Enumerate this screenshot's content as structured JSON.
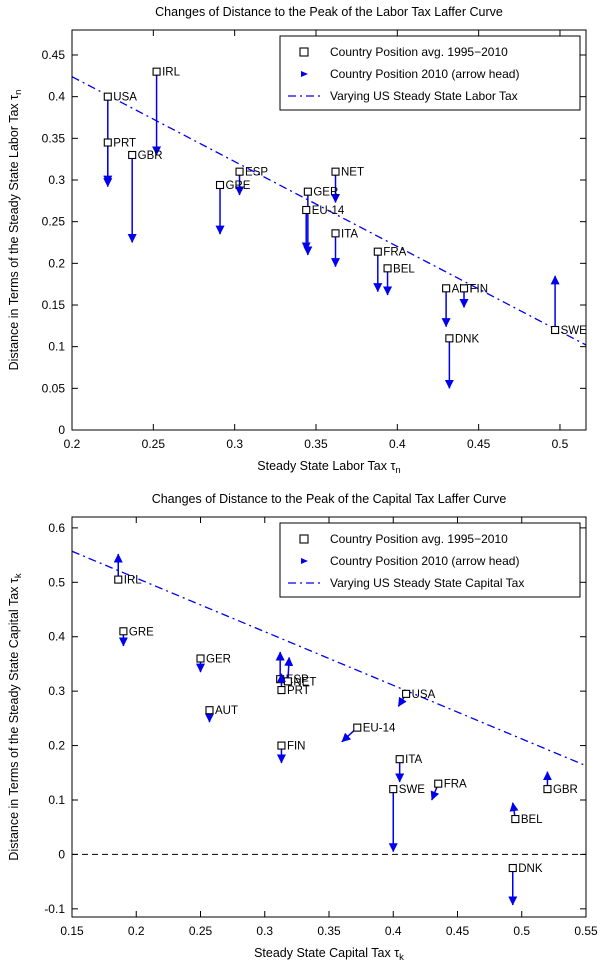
{
  "figure": {
    "bg": "#ffffff",
    "accent_blue": "#0000ee",
    "axis_color": "#000000"
  },
  "chart_data": [
    {
      "type": "scatter",
      "title": "Changes of Distance to the Peak of the Labor Tax Laffer Curve",
      "xlabel": {
        "text": "Steady State Labor Tax τ",
        "sub": "n"
      },
      "ylabel": {
        "text": "Distance in Terms of the Steady State Labor Tax τ",
        "sub": "n"
      },
      "xlim": [
        0.2,
        0.516
      ],
      "ylim": [
        0,
        0.48
      ],
      "xticks": [
        0.2,
        0.25,
        0.3,
        0.35,
        0.4,
        0.45,
        0.5
      ],
      "yticks": [
        0,
        0.05,
        0.1,
        0.15,
        0.2,
        0.25,
        0.3,
        0.35,
        0.4,
        0.45
      ],
      "grid": false,
      "legend_position": "top-right",
      "legend": [
        {
          "marker": "square",
          "label": "Country Position avg. 1995−2010"
        },
        {
          "marker": "arrowhead",
          "label": "Country Position 2010 (arrow head)"
        },
        {
          "marker": "dashdot-line",
          "label": "Varying US Steady State Labor Tax"
        }
      ],
      "reference_line": {
        "x": [
          0.2,
          0.516
        ],
        "y": [
          0.424,
          0.102
        ]
      },
      "zero_line": false,
      "points": [
        {
          "label": "USA",
          "x": 0.222,
          "y": 0.4,
          "x2": 0.222,
          "y2": 0.295
        },
        {
          "label": "IRL",
          "x": 0.252,
          "y": 0.43,
          "x2": 0.252,
          "y2": 0.33
        },
        {
          "label": "PRT",
          "x": 0.222,
          "y": 0.345,
          "x2": 0.222,
          "y2": 0.292
        },
        {
          "label": "GBR",
          "x": 0.237,
          "y": 0.33,
          "x2": 0.237,
          "y2": 0.225
        },
        {
          "label": "ESP",
          "x": 0.303,
          "y": 0.31,
          "x2": 0.303,
          "y2": 0.282
        },
        {
          "label": "GRE",
          "x": 0.291,
          "y": 0.294,
          "x2": 0.291,
          "y2": 0.235
        },
        {
          "label": "NET",
          "x": 0.362,
          "y": 0.31,
          "x2": 0.362,
          "y2": 0.273
        },
        {
          "label": "GER",
          "x": 0.345,
          "y": 0.286,
          "x2": 0.345,
          "y2": 0.21
        },
        {
          "label": "EU-14",
          "x": 0.344,
          "y": 0.264,
          "x2": 0.344,
          "y2": 0.215
        },
        {
          "label": "ITA",
          "x": 0.362,
          "y": 0.236,
          "x2": 0.362,
          "y2": 0.196
        },
        {
          "label": "FRA",
          "x": 0.388,
          "y": 0.214,
          "x2": 0.388,
          "y2": 0.166
        },
        {
          "label": "BEL",
          "x": 0.394,
          "y": 0.194,
          "x2": 0.394,
          "y2": 0.162
        },
        {
          "label": "AUT",
          "x": 0.43,
          "y": 0.17,
          "x2": 0.43,
          "y2": 0.124
        },
        {
          "label": "FIN",
          "x": 0.441,
          "y": 0.17,
          "x2": 0.441,
          "y2": 0.147
        },
        {
          "label": "DNK",
          "x": 0.432,
          "y": 0.11,
          "x2": 0.432,
          "y2": 0.05
        },
        {
          "label": "SWE",
          "x": 0.497,
          "y": 0.12,
          "x2": 0.497,
          "y2": 0.185
        }
      ]
    },
    {
      "type": "scatter",
      "title": "Changes of Distance to the Peak of the Capital Tax Laffer Curve",
      "xlabel": {
        "text": "Steady State Capital Tax τ",
        "sub": "k"
      },
      "ylabel": {
        "text": "Distance in Terms of the Steady State Capital Tax τ",
        "sub": "k"
      },
      "xlim": [
        0.15,
        0.55
      ],
      "ylim": [
        -0.115,
        0.62
      ],
      "xticks": [
        0.15,
        0.2,
        0.25,
        0.3,
        0.35,
        0.4,
        0.45,
        0.5,
        0.55
      ],
      "yticks": [
        -0.1,
        0,
        0.1,
        0.2,
        0.3,
        0.4,
        0.5,
        0.6
      ],
      "grid": false,
      "legend_position": "top-right",
      "legend": [
        {
          "marker": "square",
          "label": "Country Position avg. 1995−2010"
        },
        {
          "marker": "arrowhead",
          "label": "Country Position 2010 (arrow head)"
        },
        {
          "marker": "dashdot-line",
          "label": "Varying US Steady State Capital Tax"
        }
      ],
      "reference_line": {
        "x": [
          0.15,
          0.55
        ],
        "y": [
          0.557,
          0.163
        ]
      },
      "zero_line": true,
      "points": [
        {
          "label": "IRL",
          "x": 0.186,
          "y": 0.505,
          "x2": 0.186,
          "y2": 0.552
        },
        {
          "label": "GRE",
          "x": 0.19,
          "y": 0.41,
          "x2": 0.19,
          "y2": 0.383
        },
        {
          "label": "GER",
          "x": 0.25,
          "y": 0.36,
          "x2": 0.25,
          "y2": 0.335
        },
        {
          "label": "AUT",
          "x": 0.257,
          "y": 0.265,
          "x2": 0.257,
          "y2": 0.243
        },
        {
          "label": "ESP",
          "x": 0.312,
          "y": 0.322,
          "x2": 0.312,
          "y2": 0.372
        },
        {
          "label": "NET",
          "x": 0.318,
          "y": 0.318,
          "x2": 0.319,
          "y2": 0.362
        },
        {
          "label": "PRT",
          "x": 0.313,
          "y": 0.302,
          "x2": 0.313,
          "y2": 0.332
        },
        {
          "label": "FIN",
          "x": 0.313,
          "y": 0.2,
          "x2": 0.313,
          "y2": 0.168
        },
        {
          "label": "EU-14",
          "x": 0.372,
          "y": 0.233,
          "x2": 0.36,
          "y2": 0.207
        },
        {
          "label": "USA",
          "x": 0.41,
          "y": 0.295,
          "x2": 0.404,
          "y2": 0.272
        },
        {
          "label": "ITA",
          "x": 0.405,
          "y": 0.175,
          "x2": 0.405,
          "y2": 0.133
        },
        {
          "label": "SWE",
          "x": 0.4,
          "y": 0.12,
          "x2": 0.4,
          "y2": 0.005
        },
        {
          "label": "FRA",
          "x": 0.435,
          "y": 0.13,
          "x2": 0.43,
          "y2": 0.1
        },
        {
          "label": "GBR",
          "x": 0.52,
          "y": 0.12,
          "x2": 0.52,
          "y2": 0.152
        },
        {
          "label": "BEL",
          "x": 0.495,
          "y": 0.065,
          "x2": 0.493,
          "y2": 0.095
        },
        {
          "label": "DNK",
          "x": 0.493,
          "y": -0.025,
          "x2": 0.493,
          "y2": -0.093
        }
      ]
    }
  ]
}
